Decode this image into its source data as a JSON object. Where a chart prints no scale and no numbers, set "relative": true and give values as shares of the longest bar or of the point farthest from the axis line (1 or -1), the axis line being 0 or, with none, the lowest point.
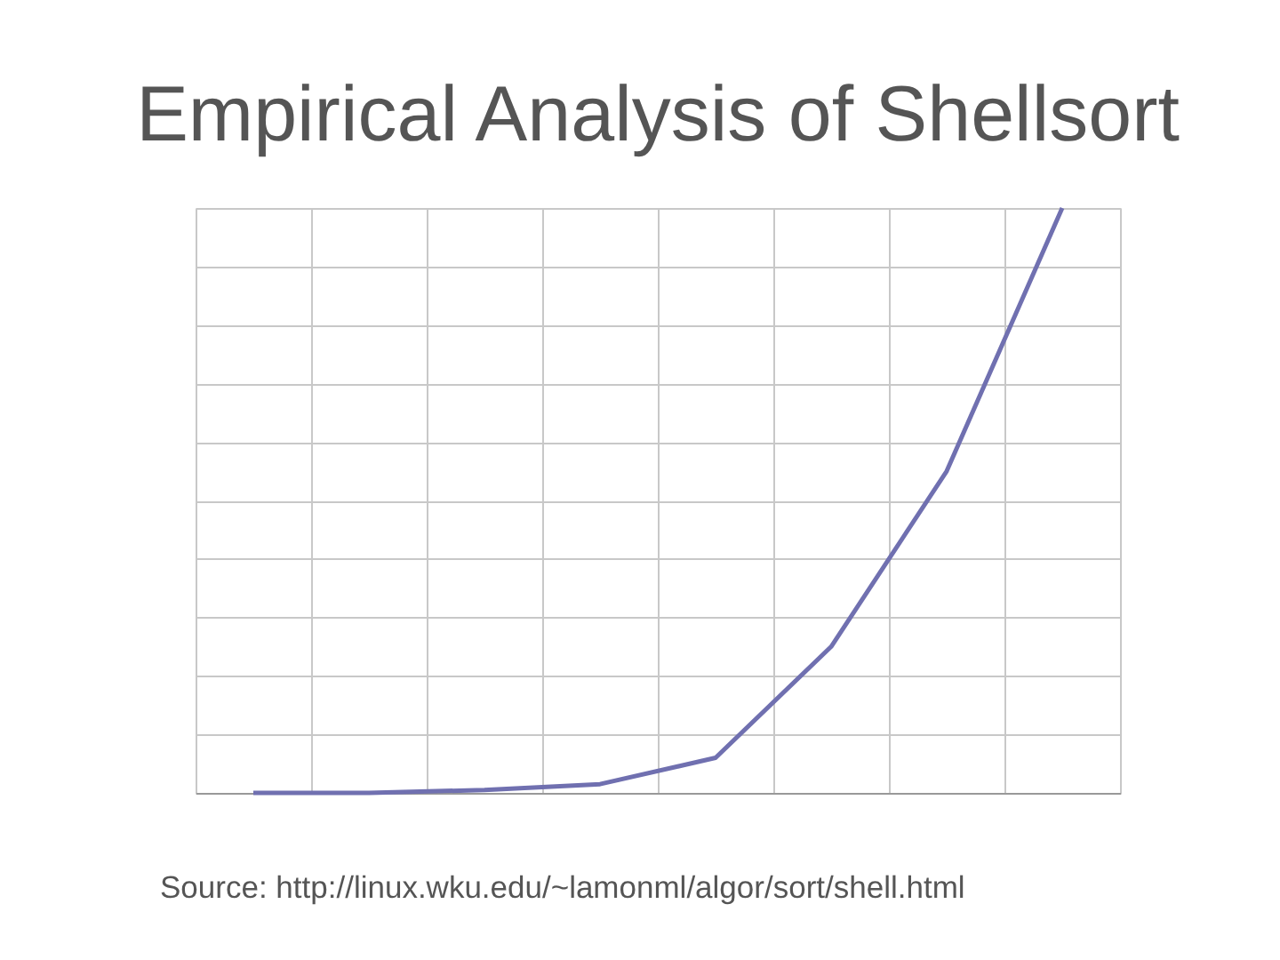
{
  "chart_data": {
    "type": "line",
    "title": "Empirical Analysis of Shellsort",
    "categories": [
      null,
      null,
      null,
      null,
      null,
      null,
      null,
      null
    ],
    "series": [
      {
        "color": "#7070b0",
        "values": [
          0,
          0,
          0.005,
          0.015,
          0.06,
          0.25,
          0.55,
          1
        ]
      }
    ],
    "relative": true,
    "grid": true,
    "annotations": [
      "Source: http://linux.wku.edu/~lamonml/algor/sort/shell.html"
    ]
  }
}
